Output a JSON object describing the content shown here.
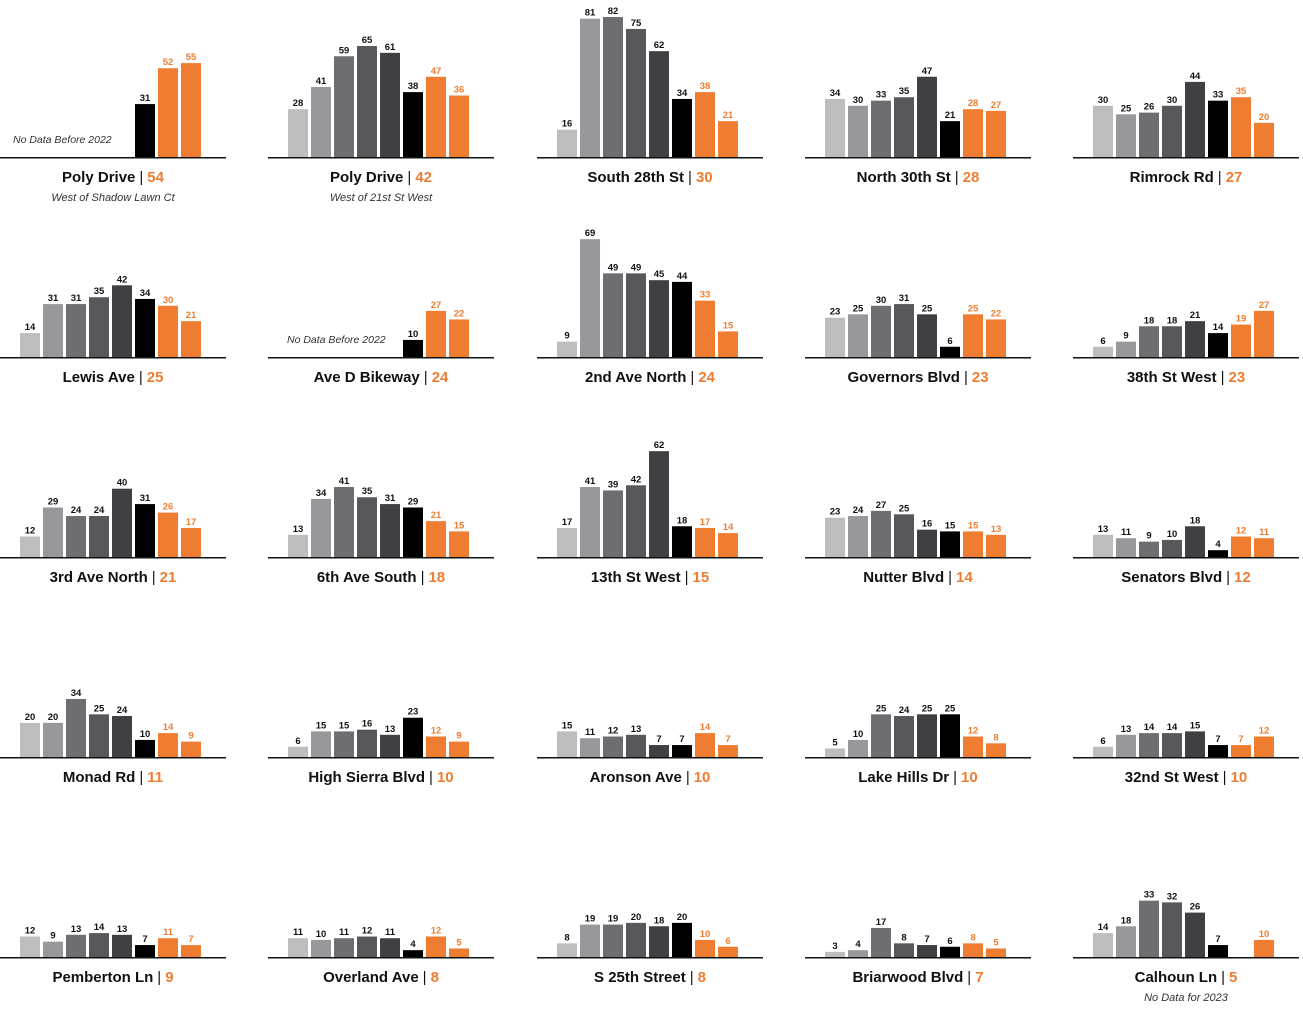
{
  "colors": {
    "years": [
      "#bdbdbd",
      "#98989c",
      "#6e6e72",
      "#58585c",
      "#404044",
      "#000000",
      "#ee7d31",
      "#ee7d31"
    ],
    "label_dark": "#111111",
    "label_orange": "#ee7d31"
  },
  "chart_data": [
    {
      "type": "bar",
      "title": "Poly Drive",
      "value": "54",
      "subtitle": "West of Shadow Lawn Ct",
      "note": "No Data Before 2022",
      "values": [
        null,
        null,
        null,
        null,
        null,
        31,
        52,
        55
      ]
    },
    {
      "type": "bar",
      "title": "Poly Drive",
      "value": "42",
      "subtitle": "West of 21st St West",
      "note": "",
      "values": [
        28,
        41,
        59,
        65,
        61,
        38,
        47,
        36
      ]
    },
    {
      "type": "bar",
      "title": "South 28th St",
      "value": "30",
      "subtitle": "",
      "note": "",
      "values": [
        16,
        81,
        82,
        75,
        62,
        34,
        38,
        21
      ]
    },
    {
      "type": "bar",
      "title": "North 30th St",
      "value": "28",
      "subtitle": "",
      "note": "",
      "values": [
        34,
        30,
        33,
        35,
        47,
        21,
        28,
        27
      ]
    },
    {
      "type": "bar",
      "title": "Rimrock Rd",
      "value": "27",
      "subtitle": "",
      "note": "",
      "values": [
        30,
        25,
        26,
        30,
        44,
        33,
        35,
        20
      ]
    },
    {
      "type": "bar",
      "title": "Lewis Ave",
      "value": "25",
      "subtitle": "",
      "note": "",
      "values": [
        14,
        31,
        31,
        35,
        42,
        34,
        30,
        21
      ]
    },
    {
      "type": "bar",
      "title": "Ave D Bikeway",
      "value": "24",
      "subtitle": "",
      "note": "No Data Before 2022",
      "values": [
        null,
        null,
        null,
        null,
        null,
        10,
        27,
        22
      ]
    },
    {
      "type": "bar",
      "title": "2nd Ave North",
      "value": "24",
      "subtitle": "",
      "note": "",
      "values": [
        9,
        69,
        49,
        49,
        45,
        44,
        33,
        15
      ]
    },
    {
      "type": "bar",
      "title": "Governors Blvd",
      "value": "23",
      "subtitle": "",
      "note": "",
      "values": [
        23,
        25,
        30,
        31,
        25,
        6,
        25,
        22
      ]
    },
    {
      "type": "bar",
      "title": "38th St West",
      "value": "23",
      "subtitle": "",
      "note": "",
      "values": [
        6,
        9,
        18,
        18,
        21,
        14,
        19,
        27
      ]
    },
    {
      "type": "bar",
      "title": "3rd Ave North",
      "value": "21",
      "subtitle": "",
      "note": "",
      "values": [
        12,
        29,
        24,
        24,
        40,
        31,
        26,
        17
      ]
    },
    {
      "type": "bar",
      "title": "6th Ave South",
      "value": "18",
      "subtitle": "",
      "note": "",
      "values": [
        13,
        34,
        41,
        35,
        31,
        29,
        21,
        15
      ]
    },
    {
      "type": "bar",
      "title": "13th St West",
      "value": "15",
      "subtitle": "",
      "note": "",
      "values": [
        17,
        41,
        39,
        42,
        62,
        18,
        17,
        14
      ]
    },
    {
      "type": "bar",
      "title": "Nutter Blvd",
      "value": "14",
      "subtitle": "",
      "note": "",
      "values": [
        23,
        24,
        27,
        25,
        16,
        15,
        15,
        13
      ]
    },
    {
      "type": "bar",
      "title": "Senators Blvd",
      "value": "12",
      "subtitle": "",
      "note": "",
      "values": [
        13,
        11,
        9,
        10,
        18,
        4,
        12,
        11
      ]
    },
    {
      "type": "bar",
      "title": "Monad Rd",
      "value": "11",
      "subtitle": "",
      "note": "",
      "values": [
        20,
        20,
        34,
        25,
        24,
        10,
        14,
        9
      ]
    },
    {
      "type": "bar",
      "title": "High Sierra Blvd",
      "value": "10",
      "subtitle": "",
      "note": "",
      "values": [
        6,
        15,
        15,
        16,
        13,
        23,
        12,
        9
      ]
    },
    {
      "type": "bar",
      "title": "Aronson Ave",
      "value": "10",
      "subtitle": "",
      "note": "",
      "values": [
        15,
        11,
        12,
        13,
        7,
        7,
        14,
        7
      ]
    },
    {
      "type": "bar",
      "title": "Lake Hills Dr",
      "value": "10",
      "subtitle": "",
      "note": "",
      "values": [
        5,
        10,
        25,
        24,
        25,
        25,
        12,
        8
      ]
    },
    {
      "type": "bar",
      "title": "32nd St West",
      "value": "10",
      "subtitle": "",
      "note": "",
      "values": [
        6,
        13,
        14,
        14,
        15,
        7,
        7,
        12
      ]
    },
    {
      "type": "bar",
      "title": "Pemberton Ln",
      "value": "9",
      "subtitle": "",
      "note": "",
      "values": [
        12,
        9,
        13,
        14,
        13,
        7,
        11,
        7
      ]
    },
    {
      "type": "bar",
      "title": "Overland Ave",
      "value": "8",
      "subtitle": "",
      "note": "",
      "values": [
        11,
        10,
        11,
        12,
        11,
        4,
        12,
        5
      ]
    },
    {
      "type": "bar",
      "title": "S 25th Street",
      "value": "8",
      "subtitle": "",
      "note": "",
      "values": [
        8,
        19,
        19,
        20,
        18,
        20,
        10,
        6
      ]
    },
    {
      "type": "bar",
      "title": "Briarwood Blvd",
      "value": "7",
      "subtitle": "",
      "note": "",
      "values": [
        3,
        4,
        17,
        8,
        7,
        6,
        8,
        5
      ]
    },
    {
      "type": "bar",
      "title": "Calhoun Ln",
      "value": "5",
      "subtitle": "No Data for 2023",
      "note": "",
      "values": [
        14,
        18,
        33,
        32,
        26,
        7,
        null,
        10
      ]
    }
  ]
}
